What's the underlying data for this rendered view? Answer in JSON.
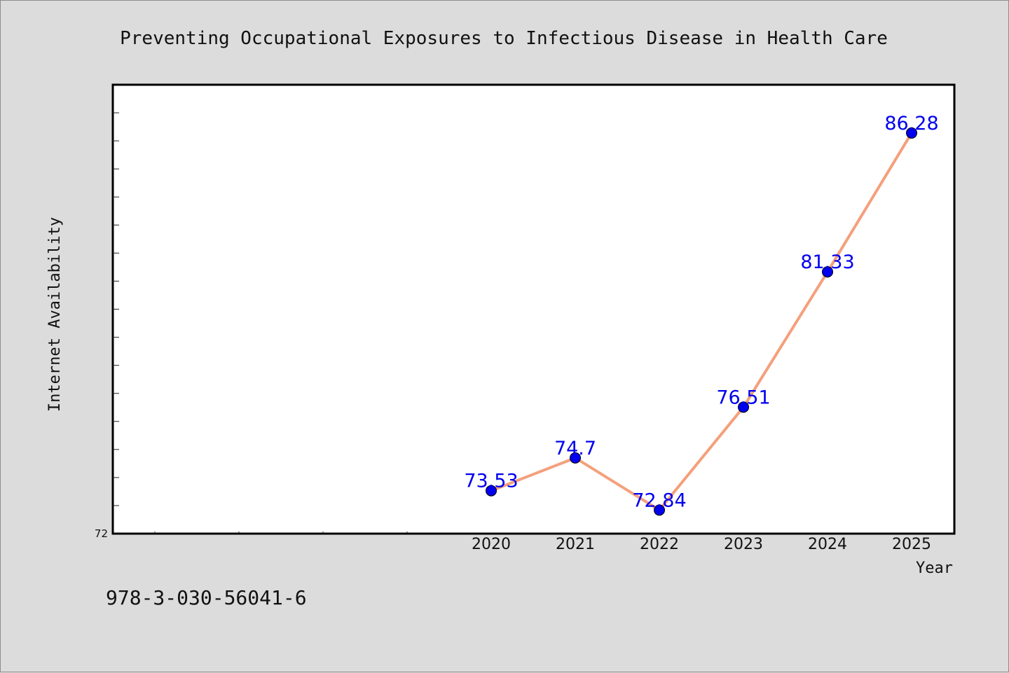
{
  "chart_data": {
    "type": "line",
    "title": "Preventing Occupational Exposures to Infectious Disease in Health Care",
    "xlabel": "Year",
    "ylabel": "Internet Availability",
    "x": [
      "2020",
      "2021",
      "2022",
      "2023",
      "2024",
      "2025"
    ],
    "series": [
      {
        "values": [
          73.53,
          74.7,
          72.84,
          76.51,
          81.33,
          86.28
        ]
      }
    ],
    "data_labels": [
      "73.53",
      "74.7",
      "72.84",
      "76.51",
      "81.33",
      "86.28"
    ],
    "ytick_labels": [
      "72"
    ],
    "ylim": [
      72,
      88
    ],
    "grid": false,
    "line_color": "#f4a07c",
    "marker_color": "#0000ee",
    "label_color": "#0000ee"
  },
  "footer": {
    "isbn": "978-3-030-56041-6"
  }
}
